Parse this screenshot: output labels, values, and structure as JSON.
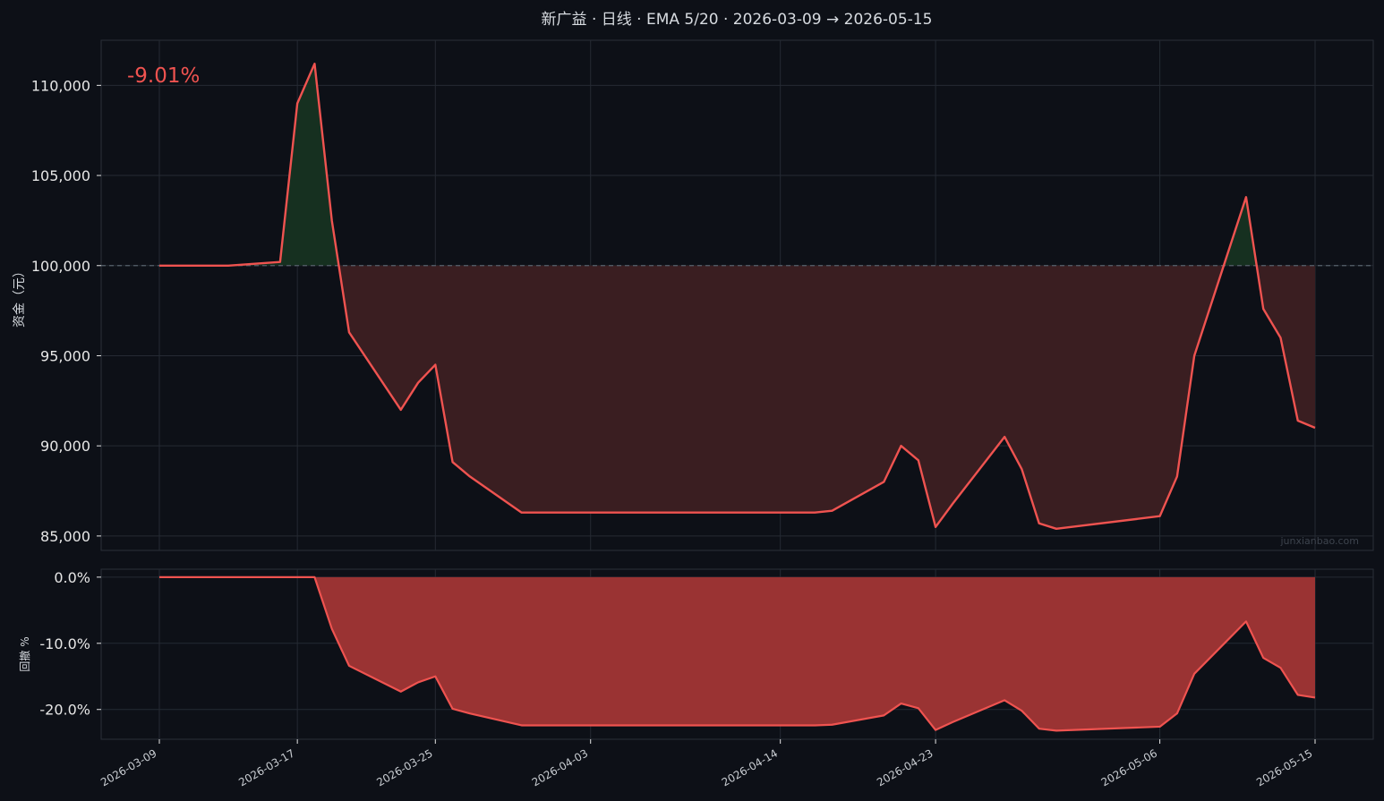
{
  "title": "新广益 · 日线 · EMA 5/20 · 2026-03-09 → 2026-05-15",
  "return_label": "-9.01%",
  "watermark": "junxianbao.com",
  "colors": {
    "background": "#0d1017",
    "panel": "#0d1017",
    "grid": "#252a33",
    "axis_text": "#e6e6e6",
    "line": "#ef5350",
    "gain_fill": "#163020",
    "loss_fill": "#3a1e21",
    "drawdown_fill": "#9a3333",
    "baseline": "#56606c"
  },
  "chart_data": [
    {
      "type": "line",
      "name": "equity",
      "ylabel": "资金（元）",
      "ylim": [
        84200,
        112500
      ],
      "yticks": [
        85000,
        90000,
        95000,
        100000,
        105000,
        110000
      ],
      "ytick_labels": [
        "85,000",
        "90,000",
        "95,000",
        "100,000",
        "105,000",
        "110,000"
      ],
      "baseline": 100000,
      "grid": true,
      "x": [
        "2026-03-09",
        "2026-03-10",
        "2026-03-11",
        "2026-03-12",
        "2026-03-13",
        "2026-03-16",
        "2026-03-17",
        "2026-03-18",
        "2026-03-19",
        "2026-03-20",
        "2026-03-23",
        "2026-03-24",
        "2026-03-25",
        "2026-03-26",
        "2026-03-27",
        "2026-03-30",
        "2026-03-31",
        "2026-04-01",
        "2026-04-02",
        "2026-04-03",
        "2026-04-07",
        "2026-04-08",
        "2026-04-09",
        "2026-04-10",
        "2026-04-13",
        "2026-04-14",
        "2026-04-15",
        "2026-04-16",
        "2026-04-17",
        "2026-04-20",
        "2026-04-21",
        "2026-04-22",
        "2026-04-23",
        "2026-04-24",
        "2026-04-27",
        "2026-04-28",
        "2026-04-29",
        "2026-04-30",
        "2026-05-06",
        "2026-05-07",
        "2026-05-08",
        "2026-05-11",
        "2026-05-12",
        "2026-05-13",
        "2026-05-14",
        "2026-05-15"
      ],
      "values": [
        100000,
        100000,
        100000,
        100000,
        100000,
        100200,
        109000,
        111200,
        102500,
        96300,
        92000,
        93500,
        94500,
        89100,
        88300,
        86300,
        86300,
        86300,
        86300,
        86300,
        86300,
        86300,
        86300,
        86300,
        86300,
        86300,
        86300,
        86300,
        86400,
        88000,
        90000,
        89200,
        85500,
        86800,
        90500,
        88700,
        85700,
        85400,
        86100,
        88300,
        95000,
        103800,
        97600,
        96000,
        91400,
        91000
      ],
      "xticks": [
        "2026-03-09",
        "2026-03-17",
        "2026-03-25",
        "2026-04-03",
        "2026-04-14",
        "2026-04-23",
        "2026-05-06",
        "2026-05-15"
      ]
    },
    {
      "type": "area",
      "name": "drawdown",
      "ylabel": "回撤 %",
      "ylim": [
        -24.5,
        1.2
      ],
      "yticks": [
        0,
        -10,
        -20
      ],
      "ytick_labels": [
        "0.0%",
        "-10.0%",
        "-20.0%"
      ],
      "grid": true,
      "x": [
        "2026-03-09",
        "2026-03-10",
        "2026-03-11",
        "2026-03-12",
        "2026-03-13",
        "2026-03-16",
        "2026-03-17",
        "2026-03-18",
        "2026-03-19",
        "2026-03-20",
        "2026-03-23",
        "2026-03-24",
        "2026-03-25",
        "2026-03-26",
        "2026-03-27",
        "2026-03-30",
        "2026-03-31",
        "2026-04-01",
        "2026-04-02",
        "2026-04-03",
        "2026-04-07",
        "2026-04-08",
        "2026-04-09",
        "2026-04-10",
        "2026-04-13",
        "2026-04-14",
        "2026-04-15",
        "2026-04-16",
        "2026-04-17",
        "2026-04-20",
        "2026-04-21",
        "2026-04-22",
        "2026-04-23",
        "2026-04-24",
        "2026-04-27",
        "2026-04-28",
        "2026-04-29",
        "2026-04-30",
        "2026-05-06",
        "2026-05-07",
        "2026-05-08",
        "2026-05-11",
        "2026-05-12",
        "2026-05-13",
        "2026-05-14",
        "2026-05-15"
      ],
      "values": [
        0,
        0,
        0,
        0,
        0,
        0,
        0,
        0,
        -7.8,
        -13.4,
        -17.3,
        -15.9,
        -15.0,
        -19.9,
        -20.6,
        -22.4,
        -22.4,
        -22.4,
        -22.4,
        -22.4,
        -22.4,
        -22.4,
        -22.4,
        -22.4,
        -22.4,
        -22.4,
        -22.4,
        -22.4,
        -22.3,
        -20.9,
        -19.1,
        -19.8,
        -23.1,
        -21.9,
        -18.6,
        -20.2,
        -22.9,
        -23.2,
        -22.6,
        -20.6,
        -14.6,
        -6.7,
        -12.2,
        -13.7,
        -17.8,
        -18.2
      ],
      "xticks": [
        "2026-03-09",
        "2026-03-17",
        "2026-03-25",
        "2026-04-03",
        "2026-04-14",
        "2026-04-23",
        "2026-05-06",
        "2026-05-15"
      ]
    }
  ]
}
